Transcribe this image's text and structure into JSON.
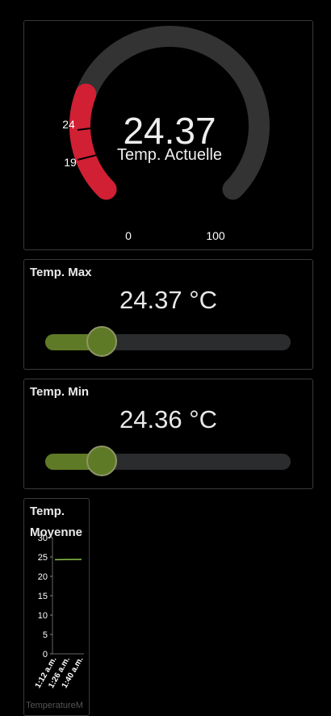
{
  "gauge": {
    "value": "24.37",
    "label": "Temp. Actuelle",
    "min_label": "0",
    "max_label": "100",
    "marker_high": "24",
    "marker_low": "19",
    "min": 0,
    "max": 100,
    "current": 24.37,
    "colors": {
      "track": "#333333",
      "fill": "#d11f33"
    }
  },
  "temp_max": {
    "title": "Temp. Max",
    "value_text": "24.37 °C",
    "slider_fraction": 0.23
  },
  "temp_min": {
    "title": "Temp. Min",
    "value_text": "24.36 °C",
    "slider_fraction": 0.23
  },
  "temp_avg": {
    "title_line1": "Temp.",
    "title_line2": "Moyenne",
    "legend": "TemperatureM",
    "chart_data": {
      "type": "line",
      "x": [
        "1:12 a.m.",
        "1:26 a.m.",
        "1:40 a.m."
      ],
      "series": [
        {
          "values": [
            24.3,
            24.35,
            24.37
          ]
        }
      ],
      "yticks": [
        "0",
        "5",
        "10",
        "15",
        "20",
        "25",
        "30"
      ],
      "ylim": [
        0,
        30
      ],
      "line_color": "#8bc34a"
    }
  }
}
